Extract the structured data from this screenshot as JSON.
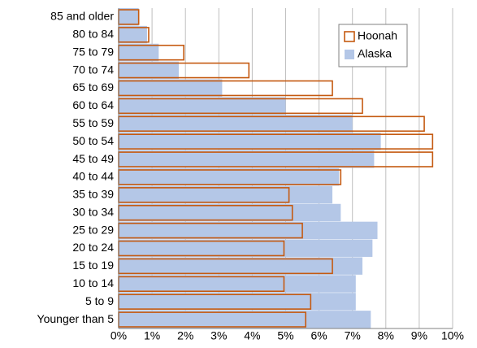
{
  "chart_data": {
    "type": "hbar",
    "categories": [
      "85 and older",
      "80 to 84",
      "75 to 79",
      "70 to 74",
      "65 to 69",
      "60 to 64",
      "55 to 59",
      "50 to 54",
      "45 to 49",
      "40 to 44",
      "35 to 39",
      "30 to 34",
      "25 to 29",
      "20 to 24",
      "15 to 19",
      "10 to 14",
      "5 to 9",
      "Younger than 5"
    ],
    "series": [
      {
        "name": "Alaska",
        "color": "#b4c7e7",
        "style": "filled",
        "values": [
          0.6,
          0.85,
          1.2,
          1.8,
          3.1,
          5.0,
          7.0,
          7.85,
          7.65,
          6.6,
          6.4,
          6.65,
          7.75,
          7.6,
          7.3,
          7.1,
          7.1,
          7.55
        ]
      },
      {
        "name": "Hoonah",
        "color": "#c55a11",
        "style": "outline",
        "values": [
          0.6,
          0.9,
          1.95,
          3.9,
          6.4,
          7.3,
          9.15,
          9.4,
          9.4,
          6.65,
          5.1,
          5.2,
          5.5,
          4.95,
          6.4,
          4.95,
          5.75,
          5.6
        ]
      }
    ],
    "xlim": [
      0,
      10
    ],
    "xticks": [
      {
        "value": 0,
        "label": "0%"
      },
      {
        "value": 1,
        "label": "1%"
      },
      {
        "value": 2,
        "label": "2%"
      },
      {
        "value": 3,
        "label": "3%"
      },
      {
        "value": 4,
        "label": "4%"
      },
      {
        "value": 5,
        "label": "5%"
      },
      {
        "value": 6,
        "label": "6%"
      },
      {
        "value": 7,
        "label": "7%"
      },
      {
        "value": 8,
        "label": "8%"
      },
      {
        "value": 9,
        "label": "9%"
      },
      {
        "value": 10,
        "label": "10%"
      }
    ],
    "grid": true,
    "legend": "upper right"
  }
}
